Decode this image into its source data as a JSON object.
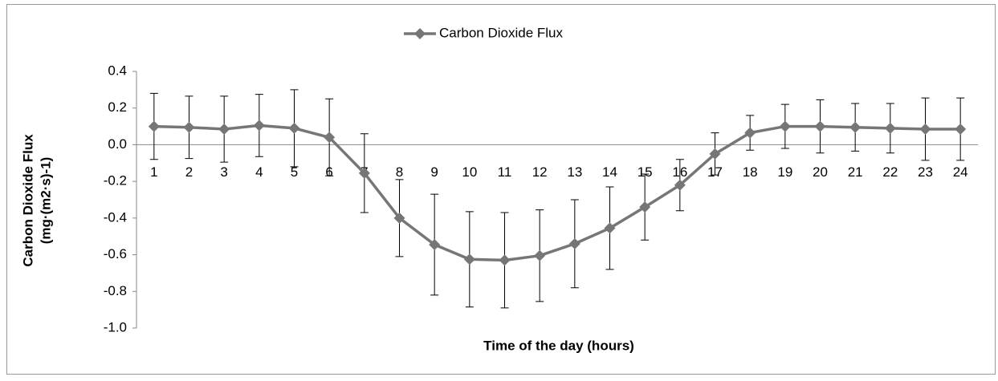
{
  "chart_data": {
    "type": "line",
    "legend": "top",
    "x_label": "Time of the day (hours)",
    "y_label": [
      "Carbon Dioxide Flux",
      "(mg·(m2·s)-1)"
    ],
    "categories": [
      "1",
      "2",
      "3",
      "4",
      "5",
      "6",
      "7",
      "8",
      "9",
      "10",
      "11",
      "12",
      "13",
      "14",
      "15",
      "16",
      "17",
      "18",
      "19",
      "20",
      "21",
      "22",
      "23",
      "24"
    ],
    "series": [
      {
        "name": "Carbon Dioxide Flux",
        "color": "#767676",
        "values": [
          0.1,
          0.095,
          0.085,
          0.105,
          0.09,
          0.04,
          -0.155,
          -0.4,
          -0.545,
          -0.625,
          -0.63,
          -0.605,
          -0.54,
          -0.455,
          -0.34,
          -0.22,
          -0.05,
          0.065,
          0.1,
          0.1,
          0.095,
          0.09,
          0.085,
          0.085
        ],
        "errors": [
          0.18,
          0.17,
          0.18,
          0.17,
          0.21,
          0.21,
          0.215,
          0.21,
          0.275,
          0.26,
          0.26,
          0.25,
          0.24,
          0.225,
          0.18,
          0.14,
          0.115,
          0.095,
          0.12,
          0.145,
          0.13,
          0.135,
          0.17,
          0.17
        ]
      }
    ],
    "ylim": [
      -1.0,
      0.4
    ],
    "yticks": [
      {
        "value": -1.0,
        "label": "-1.0"
      },
      -0.8,
      -0.6,
      -0.4,
      -0.2,
      {
        "value": 0,
        "label": "0.0"
      },
      0.2,
      0.4
    ]
  }
}
